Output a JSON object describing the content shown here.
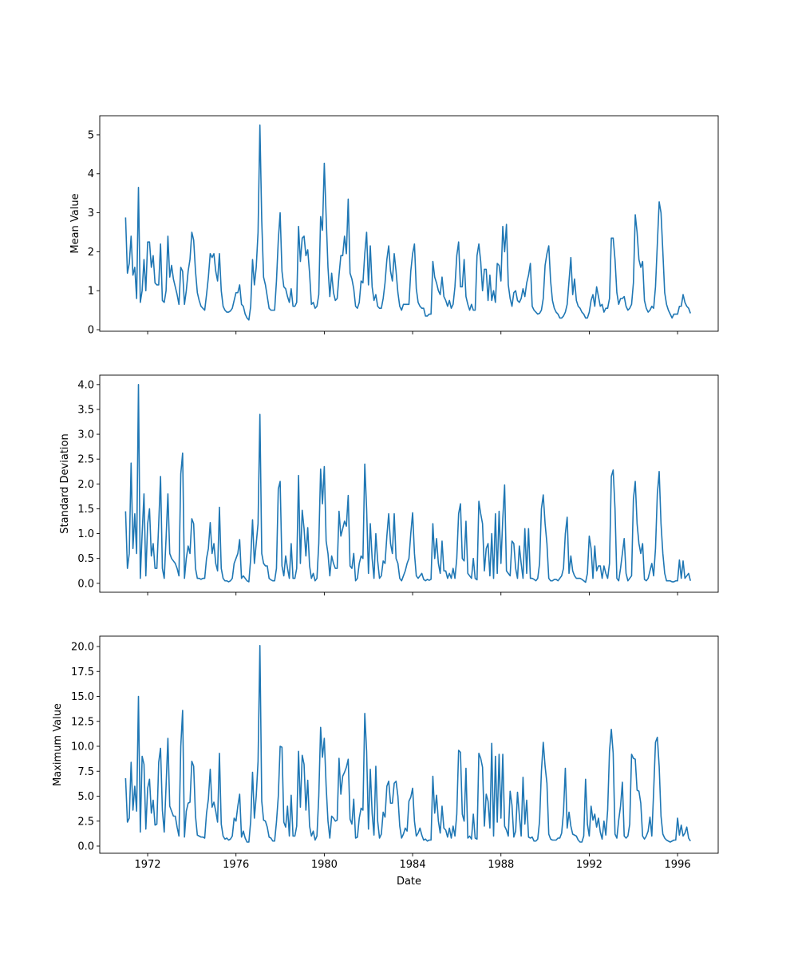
{
  "chart_data": [
    {
      "type": "line",
      "ylabel": "Mean Value",
      "xlabel": "",
      "x_start": "1971-01",
      "frequency": "monthly",
      "xlim": [
        1969.83,
        1997.84
      ],
      "ylim": [
        -0.04,
        5.49
      ],
      "yticks": [
        0,
        1,
        2,
        3,
        4,
        5
      ],
      "ytick_labels": [
        "0",
        "1",
        "2",
        "3",
        "4",
        "5"
      ],
      "xticks": [
        1972,
        1976,
        1980,
        1984,
        1988,
        1992,
        1996
      ],
      "show_xtick_labels": false,
      "color": "#1f77b4",
      "values": [
        2.88,
        1.45,
        1.7,
        2.4,
        1.4,
        1.6,
        0.8,
        3.65,
        0.7,
        1.0,
        1.8,
        1.0,
        2.25,
        2.25,
        1.6,
        1.9,
        1.2,
        1.15,
        1.15,
        2.2,
        0.75,
        0.7,
        1.0,
        2.4,
        1.35,
        1.65,
        1.3,
        1.1,
        0.9,
        0.65,
        1.6,
        1.5,
        0.65,
        1.0,
        1.5,
        1.8,
        2.5,
        2.3,
        1.5,
        0.95,
        0.75,
        0.6,
        0.55,
        0.5,
        0.9,
        1.35,
        1.95,
        1.85,
        1.95,
        1.5,
        1.25,
        1.95,
        1.0,
        0.6,
        0.5,
        0.45,
        0.45,
        0.48,
        0.55,
        0.75,
        0.95,
        0.95,
        1.15,
        0.65,
        0.6,
        0.4,
        0.3,
        0.25,
        0.6,
        1.8,
        1.15,
        1.6,
        2.5,
        5.25,
        2.8,
        1.35,
        1.15,
        0.85,
        0.55,
        0.5,
        0.5,
        0.5,
        1.25,
        2.3,
        3.0,
        1.5,
        1.1,
        1.05,
        0.85,
        0.7,
        1.05,
        0.6,
        0.6,
        0.7,
        2.65,
        1.75,
        2.35,
        2.4,
        1.9,
        2.05,
        1.45,
        0.65,
        0.7,
        0.55,
        0.6,
        0.9,
        2.9,
        2.55,
        4.27,
        2.9,
        1.6,
        0.85,
        1.45,
        0.95,
        0.75,
        0.8,
        1.4,
        1.9,
        1.9,
        2.4,
        1.95,
        3.35,
        1.45,
        1.3,
        1.05,
        0.6,
        0.55,
        0.7,
        1.25,
        1.2,
        1.95,
        2.5,
        1.15,
        2.15,
        1.1,
        0.75,
        0.9,
        0.6,
        0.55,
        0.55,
        0.8,
        1.2,
        1.8,
        2.15,
        1.5,
        1.25,
        1.95,
        1.5,
        0.95,
        0.6,
        0.5,
        0.65,
        0.65,
        0.65,
        0.65,
        1.5,
        1.95,
        2.2,
        1.05,
        0.7,
        0.6,
        0.55,
        0.55,
        0.35,
        0.35,
        0.4,
        0.4,
        1.75,
        1.35,
        1.2,
        1.0,
        0.9,
        1.35,
        0.85,
        0.75,
        0.6,
        0.75,
        0.55,
        0.65,
        1.1,
        1.9,
        2.25,
        1.1,
        1.1,
        1.8,
        0.85,
        0.65,
        0.5,
        0.65,
        0.5,
        0.5,
        1.9,
        2.2,
        1.75,
        1.0,
        1.55,
        1.55,
        0.75,
        1.4,
        0.75,
        1.0,
        0.7,
        1.7,
        1.65,
        1.25,
        2.65,
        2.0,
        2.7,
        1.15,
        0.8,
        0.6,
        0.95,
        1.0,
        0.75,
        0.7,
        0.8,
        1.05,
        0.85,
        1.2,
        1.4,
        1.7,
        0.6,
        0.5,
        0.45,
        0.4,
        0.42,
        0.5,
        0.8,
        1.65,
        1.95,
        2.15,
        1.25,
        0.75,
        0.55,
        0.45,
        0.4,
        0.3,
        0.3,
        0.35,
        0.45,
        0.65,
        1.25,
        1.85,
        0.9,
        1.3,
        0.75,
        0.6,
        0.55,
        0.45,
        0.4,
        0.3,
        0.3,
        0.45,
        0.75,
        0.9,
        0.6,
        1.1,
        0.85,
        0.6,
        0.65,
        0.45,
        0.55,
        0.55,
        0.8,
        2.35,
        2.35,
        1.8,
        0.95,
        0.65,
        0.8,
        0.8,
        0.85,
        0.6,
        0.5,
        0.55,
        0.65,
        1.2,
        2.95,
        2.5,
        1.8,
        1.6,
        1.75,
        0.75,
        0.55,
        0.45,
        0.5,
        0.6,
        0.55,
        1.1,
        2.2,
        3.28,
        3.0,
        2.0,
        0.95,
        0.65,
        0.5,
        0.4,
        0.3,
        0.4,
        0.4,
        0.4,
        0.6,
        0.6,
        0.9,
        0.7,
        0.6,
        0.55,
        0.42
      ]
    },
    {
      "type": "line",
      "ylabel": "Standard Deviation",
      "xlabel": "",
      "x_start": "1971-01",
      "frequency": "monthly",
      "xlim": [
        1969.83,
        1997.84
      ],
      "ylim": [
        -0.18,
        4.19
      ],
      "yticks": [
        0,
        0.5,
        1,
        1.5,
        2,
        2.5,
        3,
        3.5,
        4
      ],
      "ytick_labels": [
        "0.0",
        "0.5",
        "1.0",
        "1.5",
        "2.0",
        "2.5",
        "3.0",
        "3.5",
        "4.0"
      ],
      "xticks": [
        1972,
        1976,
        1980,
        1984,
        1988,
        1992,
        1996
      ],
      "show_xtick_labels": false,
      "color": "#1f77b4",
      "values": [
        1.45,
        0.3,
        0.6,
        2.42,
        0.7,
        1.4,
        0.6,
        4.0,
        0.1,
        1.0,
        1.8,
        0.15,
        1.2,
        1.5,
        0.55,
        0.8,
        0.3,
        0.3,
        1.2,
        2.15,
        0.3,
        0.1,
        0.9,
        1.8,
        0.6,
        0.5,
        0.45,
        0.4,
        0.3,
        0.15,
        2.2,
        2.62,
        0.1,
        0.5,
        0.75,
        0.6,
        1.3,
        1.2,
        0.3,
        0.1,
        0.1,
        0.08,
        0.1,
        0.1,
        0.5,
        0.7,
        1.22,
        0.6,
        0.8,
        0.4,
        0.25,
        1.53,
        0.3,
        0.1,
        0.05,
        0.05,
        0.03,
        0.05,
        0.1,
        0.4,
        0.5,
        0.6,
        0.88,
        0.1,
        0.15,
        0.1,
        0.05,
        0.03,
        0.5,
        1.28,
        0.4,
        0.8,
        1.2,
        3.4,
        0.6,
        0.4,
        0.35,
        0.35,
        0.1,
        0.07,
        0.05,
        0.05,
        0.3,
        1.9,
        2.05,
        0.35,
        0.15,
        0.55,
        0.3,
        0.1,
        0.8,
        0.1,
        0.1,
        0.3,
        2.17,
        0.4,
        1.47,
        1.1,
        0.55,
        1.12,
        0.35,
        0.1,
        0.2,
        0.05,
        0.1,
        0.8,
        2.3,
        1.6,
        2.35,
        0.85,
        0.6,
        0.15,
        0.55,
        0.4,
        0.3,
        0.3,
        1.45,
        0.95,
        1.1,
        1.25,
        1.15,
        1.77,
        0.35,
        0.3,
        0.6,
        0.05,
        0.1,
        0.4,
        0.55,
        0.5,
        2.4,
        1.5,
        0.2,
        1.2,
        0.5,
        0.1,
        1.0,
        0.45,
        0.1,
        0.15,
        0.45,
        0.4,
        0.95,
        1.4,
        0.8,
        0.6,
        1.4,
        0.5,
        0.4,
        0.1,
        0.05,
        0.15,
        0.25,
        0.4,
        0.5,
        1.0,
        1.42,
        0.6,
        0.15,
        0.1,
        0.15,
        0.2,
        0.08,
        0.05,
        0.08,
        0.06,
        0.08,
        1.2,
        0.5,
        0.9,
        0.4,
        0.2,
        0.85,
        0.25,
        0.25,
        0.1,
        0.2,
        0.1,
        0.3,
        0.1,
        0.5,
        1.4,
        1.6,
        0.5,
        0.45,
        1.25,
        0.2,
        0.15,
        0.1,
        0.5,
        0.1,
        0.07,
        1.65,
        1.4,
        1.2,
        0.25,
        0.7,
        0.8,
        0.15,
        1.0,
        0.1,
        1.4,
        0.2,
        1.45,
        0.4,
        1.3,
        1.98,
        0.25,
        0.2,
        0.15,
        0.85,
        0.8,
        0.3,
        0.1,
        0.75,
        0.4,
        0.1,
        1.1,
        0.2,
        1.1,
        0.1,
        0.1,
        0.08,
        0.05,
        0.1,
        0.4,
        1.5,
        1.78,
        1.2,
        0.8,
        0.1,
        0.05,
        0.05,
        0.08,
        0.08,
        0.05,
        0.1,
        0.15,
        0.3,
        1.0,
        1.33,
        0.2,
        0.55,
        0.25,
        0.15,
        0.1,
        0.1,
        0.1,
        0.08,
        0.05,
        0.02,
        0.2,
        0.95,
        0.7,
        0.1,
        0.75,
        0.25,
        0.35,
        0.35,
        0.1,
        0.35,
        0.2,
        0.1,
        0.4,
        2.15,
        2.28,
        1.5,
        0.1,
        0.05,
        0.3,
        0.6,
        0.9,
        0.2,
        0.05,
        0.1,
        0.15,
        1.7,
        2.05,
        1.2,
        0.8,
        0.6,
        0.8,
        0.08,
        0.05,
        0.1,
        0.25,
        0.4,
        0.15,
        0.7,
        1.8,
        2.25,
        1.2,
        0.6,
        0.2,
        0.05,
        0.05,
        0.05,
        0.03,
        0.03,
        0.05,
        0.05,
        0.47,
        0.1,
        0.45,
        0.1,
        0.15,
        0.2,
        0.05
      ]
    },
    {
      "type": "line",
      "ylabel": "Maximum Value",
      "xlabel": "Date",
      "x_start": "1971-01",
      "frequency": "monthly",
      "xlim": [
        1969.83,
        1997.84
      ],
      "ylim": [
        -0.72,
        21.04
      ],
      "yticks": [
        0,
        2.5,
        5,
        7.5,
        10,
        12.5,
        15,
        17.5,
        20
      ],
      "ytick_labels": [
        "0.0",
        "2.5",
        "5.0",
        "7.5",
        "10.0",
        "12.5",
        "15.0",
        "17.5",
        "20.0"
      ],
      "xticks": [
        1972,
        1976,
        1980,
        1984,
        1988,
        1992,
        1996
      ],
      "xtick_labels": [
        "1972",
        "1976",
        "1980",
        "1984",
        "1988",
        "1992",
        "1996"
      ],
      "show_xtick_labels": true,
      "color": "#1f77b4",
      "values": [
        6.8,
        2.4,
        2.8,
        8.4,
        3.6,
        6.0,
        3.5,
        15.0,
        1.4,
        9.0,
        8.2,
        1.7,
        5.8,
        6.7,
        3.3,
        4.6,
        2.1,
        2.2,
        8.4,
        9.8,
        3.6,
        1.4,
        6.0,
        10.8,
        4.0,
        3.5,
        3.0,
        3.0,
        1.9,
        1.0,
        10.0,
        13.6,
        0.9,
        3.5,
        4.3,
        4.4,
        8.5,
        8.0,
        3.0,
        1.1,
        1.0,
        0.9,
        0.9,
        0.8,
        3.3,
        4.7,
        7.7,
        3.9,
        4.4,
        3.5,
        2.4,
        9.3,
        2.2,
        1.0,
        0.7,
        0.8,
        0.6,
        0.7,
        1.0,
        2.8,
        2.5,
        4.0,
        5.2,
        0.9,
        1.5,
        0.8,
        0.4,
        0.4,
        2.5,
        7.4,
        2.8,
        5.0,
        8.5,
        20.1,
        4.5,
        2.6,
        2.5,
        1.9,
        0.9,
        0.8,
        0.5,
        0.5,
        2.4,
        5.0,
        10.0,
        9.9,
        2.4,
        1.9,
        4.0,
        1.0,
        5.1,
        1.0,
        1.0,
        2.0,
        9.5,
        3.9,
        9.1,
        8.2,
        3.6,
        6.6,
        2.0,
        1.0,
        1.5,
        0.6,
        1.0,
        5.0,
        11.9,
        8.9,
        10.8,
        6.0,
        2.5,
        0.8,
        3.0,
        2.8,
        2.5,
        2.6,
        8.8,
        5.2,
        7.0,
        7.4,
        7.9,
        8.7,
        2.7,
        2.2,
        4.7,
        0.8,
        0.9,
        2.8,
        3.8,
        3.6,
        13.3,
        9.5,
        1.7,
        7.7,
        3.3,
        1.1,
        8.0,
        2.5,
        0.8,
        1.2,
        3.4,
        2.9,
        6.0,
        6.5,
        4.3,
        4.3,
        6.3,
        6.5,
        5.0,
        2.0,
        0.8,
        1.2,
        1.8,
        1.5,
        4.5,
        4.9,
        5.8,
        2.5,
        1.0,
        1.3,
        1.8,
        1.1,
        0.6,
        0.7,
        0.5,
        0.6,
        0.6,
        7.0,
        3.3,
        5.1,
        2.5,
        1.3,
        4.0,
        1.8,
        1.6,
        0.9,
        1.8,
        0.8,
        2.0,
        1.0,
        3.2,
        9.6,
        9.4,
        3.2,
        2.5,
        7.8,
        0.8,
        1.0,
        0.7,
        3.2,
        0.8,
        0.7,
        9.3,
        8.8,
        7.9,
        2.0,
        5.2,
        4.5,
        1.8,
        10.3,
        1.0,
        9.0,
        2.4,
        9.2,
        2.8,
        9.2,
        2.0,
        1.6,
        1.0,
        5.5,
        4.1,
        0.9,
        1.5,
        5.4,
        3.1,
        1.0,
        6.9,
        2.2,
        4.6,
        0.9,
        0.8,
        0.9,
        0.5,
        0.5,
        0.7,
        2.5,
        7.5,
        10.4,
        8.0,
        6.3,
        1.2,
        0.7,
        0.6,
        0.6,
        0.6,
        0.8,
        0.8,
        1.3,
        3.4,
        7.8,
        1.8,
        3.4,
        2.0,
        1.2,
        1.1,
        1.0,
        0.6,
        0.4,
        0.4,
        1.0,
        6.7,
        2.2,
        1.0,
        4.0,
        2.6,
        3.2,
        1.9,
        2.8,
        1.4,
        0.7,
        2.5,
        1.1,
        3.6,
        9.5,
        11.7,
        9.3,
        1.2,
        0.8,
        2.6,
        4.0,
        6.4,
        1.0,
        0.8,
        1.0,
        2.2,
        9.2,
        8.8,
        8.7,
        5.6,
        5.5,
        4.3,
        1.0,
        0.7,
        1.0,
        1.5,
        2.9,
        1.0,
        5.5,
        10.4,
        10.9,
        8.0,
        3.0,
        1.2,
        0.8,
        0.6,
        0.5,
        0.4,
        0.5,
        0.6,
        0.6,
        2.8,
        1.1,
        2.1,
        1.0,
        1.3,
        1.9,
        0.8,
        0.5
      ]
    }
  ]
}
